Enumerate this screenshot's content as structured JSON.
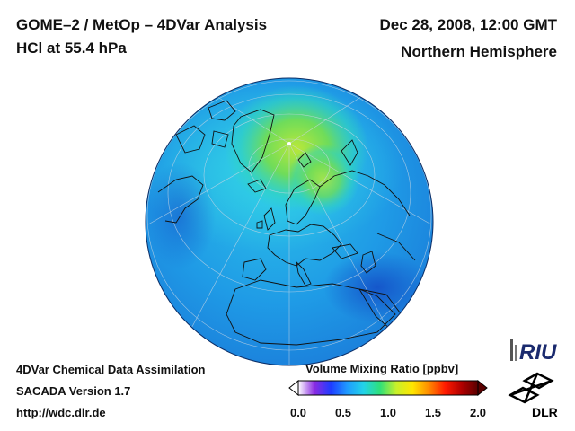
{
  "header": {
    "title": "GOME–2 / MetOp – 4DVar Analysis",
    "subtitle": "HCl at 55.4 hPa",
    "date": "Dec 28, 2008, 12:00 GMT",
    "region": "Northern Hemisphere"
  },
  "footer": {
    "line1": "4DVar Chemical Data Assimilation",
    "line2": "SACADA Version 1.7",
    "line3": "http://wdc.dlr.de"
  },
  "colorbar": {
    "title": "Volume Mixing Ratio [ppbv]",
    "ticks": [
      "0.0",
      "0.5",
      "1.0",
      "1.5",
      "2.0"
    ],
    "stops": [
      "#ffffff",
      "#8a2be2",
      "#1e3cff",
      "#1f9bff",
      "#22d3e8",
      "#2ee07a",
      "#c8f02a",
      "#ffe600",
      "#ff8a00",
      "#ff1a00",
      "#b00000",
      "#5a0000"
    ]
  },
  "logos": {
    "riu": "RIU",
    "dlr": "DLR"
  },
  "map": {
    "ocean_color": "#1f8fe0",
    "high_color": "#9be03a"
  }
}
